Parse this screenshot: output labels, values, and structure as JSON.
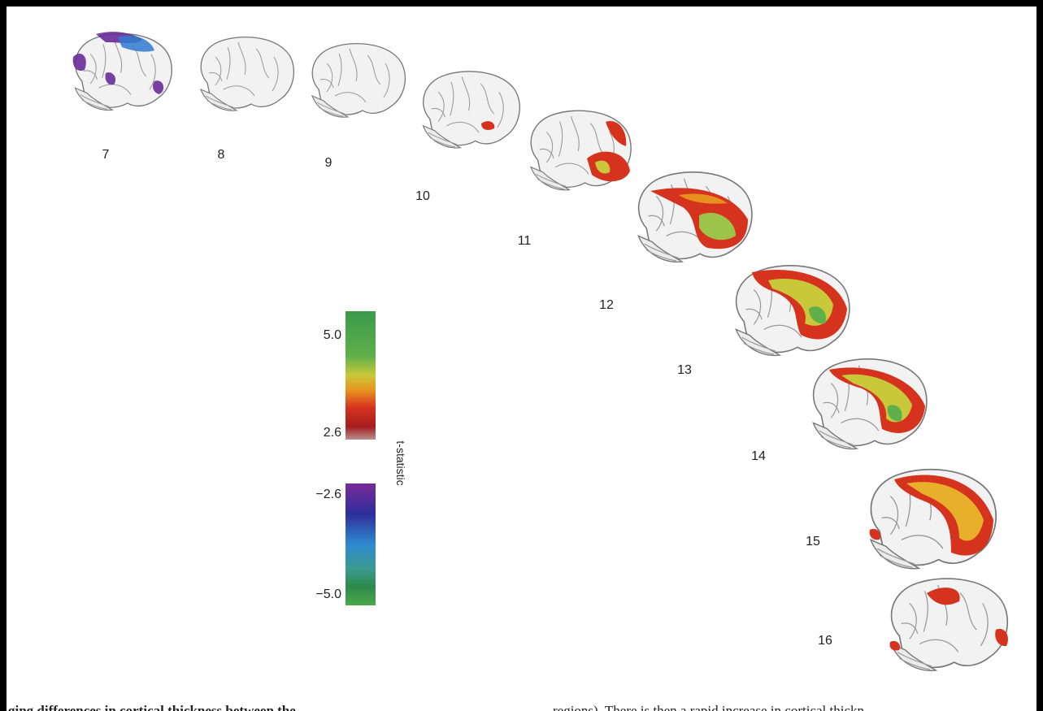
{
  "figure": {
    "panels": [
      {
        "age": "7"
      },
      {
        "age": "8"
      },
      {
        "age": "9"
      },
      {
        "age": "10"
      },
      {
        "age": "11"
      },
      {
        "age": "12"
      },
      {
        "age": "13"
      },
      {
        "age": "14"
      },
      {
        "age": "15"
      },
      {
        "age": "16"
      }
    ],
    "colorbar": {
      "positive": {
        "max": "5.0",
        "min": "2.6"
      },
      "negative": {
        "max": "−2.6",
        "min": "−5.0"
      },
      "label": "t-statistic"
    }
  },
  "text": {
    "left_column": "ging differences in cortical thickness between the",
    "right_column": "regions). There is then a rapid increase in cortical thickn"
  }
}
